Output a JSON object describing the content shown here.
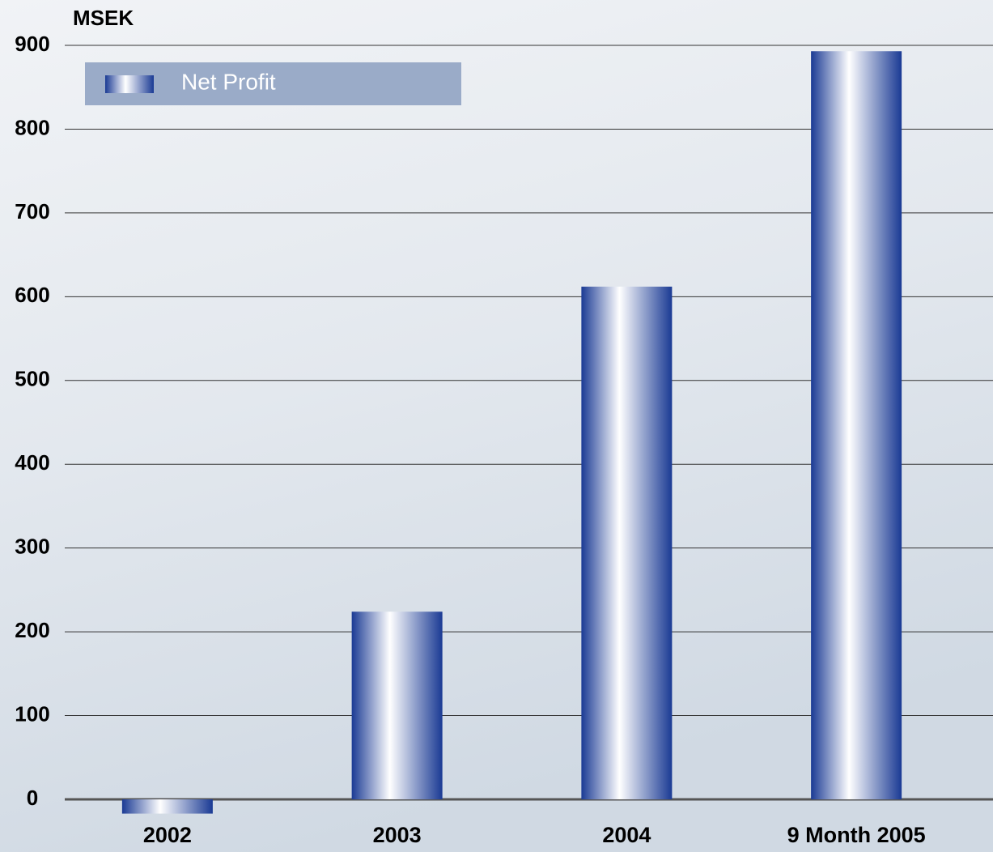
{
  "chart_data": {
    "type": "bar",
    "y_label": "MSEK",
    "categories": [
      "2002",
      "2003",
      "2004",
      "9 Month 2005"
    ],
    "series": [
      {
        "name": "Net Profit",
        "color": "#1a3a94",
        "values": [
          -17,
          224,
          612,
          893
        ]
      }
    ],
    "ylim": [
      -20,
      900
    ],
    "yticks": [
      0,
      100,
      200,
      300,
      400,
      500,
      600,
      700,
      800,
      900
    ],
    "grid": true,
    "legend": "top-left"
  }
}
